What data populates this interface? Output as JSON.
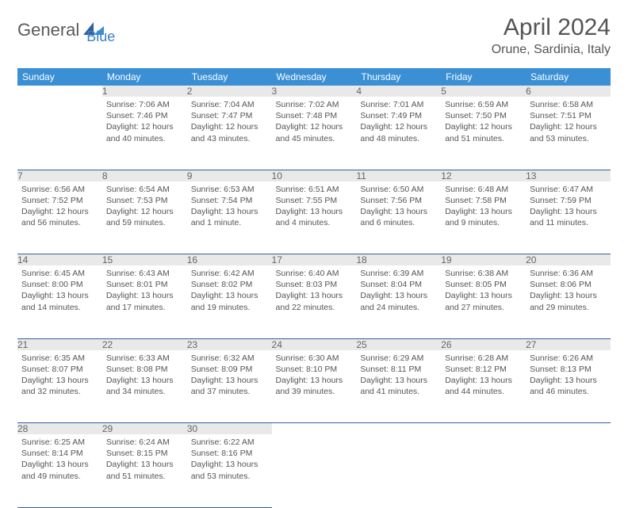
{
  "logo": {
    "text1": "General",
    "text2": "Blue",
    "color_accent": "#3b8fd4",
    "color_text": "#5a5a5a"
  },
  "header": {
    "title": "April 2024",
    "location": "Orune, Sardinia, Italy"
  },
  "colors": {
    "header_bg": "#3b8fd4",
    "header_text": "#ffffff",
    "daynum_bg": "#e9e9e9",
    "daynum_text": "#666666",
    "body_text": "#555555",
    "rule": "#2f5f9f"
  },
  "columns": [
    "Sunday",
    "Monday",
    "Tuesday",
    "Wednesday",
    "Thursday",
    "Friday",
    "Saturday"
  ],
  "weeks": [
    [
      null,
      {
        "n": "1",
        "sr": "7:06 AM",
        "ss": "7:46 PM",
        "dl": "12 hours and 40 minutes."
      },
      {
        "n": "2",
        "sr": "7:04 AM",
        "ss": "7:47 PM",
        "dl": "12 hours and 43 minutes."
      },
      {
        "n": "3",
        "sr": "7:02 AM",
        "ss": "7:48 PM",
        "dl": "12 hours and 45 minutes."
      },
      {
        "n": "4",
        "sr": "7:01 AM",
        "ss": "7:49 PM",
        "dl": "12 hours and 48 minutes."
      },
      {
        "n": "5",
        "sr": "6:59 AM",
        "ss": "7:50 PM",
        "dl": "12 hours and 51 minutes."
      },
      {
        "n": "6",
        "sr": "6:58 AM",
        "ss": "7:51 PM",
        "dl": "12 hours and 53 minutes."
      }
    ],
    [
      {
        "n": "7",
        "sr": "6:56 AM",
        "ss": "7:52 PM",
        "dl": "12 hours and 56 minutes."
      },
      {
        "n": "8",
        "sr": "6:54 AM",
        "ss": "7:53 PM",
        "dl": "12 hours and 59 minutes."
      },
      {
        "n": "9",
        "sr": "6:53 AM",
        "ss": "7:54 PM",
        "dl": "13 hours and 1 minute."
      },
      {
        "n": "10",
        "sr": "6:51 AM",
        "ss": "7:55 PM",
        "dl": "13 hours and 4 minutes."
      },
      {
        "n": "11",
        "sr": "6:50 AM",
        "ss": "7:56 PM",
        "dl": "13 hours and 6 minutes."
      },
      {
        "n": "12",
        "sr": "6:48 AM",
        "ss": "7:58 PM",
        "dl": "13 hours and 9 minutes."
      },
      {
        "n": "13",
        "sr": "6:47 AM",
        "ss": "7:59 PM",
        "dl": "13 hours and 11 minutes."
      }
    ],
    [
      {
        "n": "14",
        "sr": "6:45 AM",
        "ss": "8:00 PM",
        "dl": "13 hours and 14 minutes."
      },
      {
        "n": "15",
        "sr": "6:43 AM",
        "ss": "8:01 PM",
        "dl": "13 hours and 17 minutes."
      },
      {
        "n": "16",
        "sr": "6:42 AM",
        "ss": "8:02 PM",
        "dl": "13 hours and 19 minutes."
      },
      {
        "n": "17",
        "sr": "6:40 AM",
        "ss": "8:03 PM",
        "dl": "13 hours and 22 minutes."
      },
      {
        "n": "18",
        "sr": "6:39 AM",
        "ss": "8:04 PM",
        "dl": "13 hours and 24 minutes."
      },
      {
        "n": "19",
        "sr": "6:38 AM",
        "ss": "8:05 PM",
        "dl": "13 hours and 27 minutes."
      },
      {
        "n": "20",
        "sr": "6:36 AM",
        "ss": "8:06 PM",
        "dl": "13 hours and 29 minutes."
      }
    ],
    [
      {
        "n": "21",
        "sr": "6:35 AM",
        "ss": "8:07 PM",
        "dl": "13 hours and 32 minutes."
      },
      {
        "n": "22",
        "sr": "6:33 AM",
        "ss": "8:08 PM",
        "dl": "13 hours and 34 minutes."
      },
      {
        "n": "23",
        "sr": "6:32 AM",
        "ss": "8:09 PM",
        "dl": "13 hours and 37 minutes."
      },
      {
        "n": "24",
        "sr": "6:30 AM",
        "ss": "8:10 PM",
        "dl": "13 hours and 39 minutes."
      },
      {
        "n": "25",
        "sr": "6:29 AM",
        "ss": "8:11 PM",
        "dl": "13 hours and 41 minutes."
      },
      {
        "n": "26",
        "sr": "6:28 AM",
        "ss": "8:12 PM",
        "dl": "13 hours and 44 minutes."
      },
      {
        "n": "27",
        "sr": "6:26 AM",
        "ss": "8:13 PM",
        "dl": "13 hours and 46 minutes."
      }
    ],
    [
      {
        "n": "28",
        "sr": "6:25 AM",
        "ss": "8:14 PM",
        "dl": "13 hours and 49 minutes."
      },
      {
        "n": "29",
        "sr": "6:24 AM",
        "ss": "8:15 PM",
        "dl": "13 hours and 51 minutes."
      },
      {
        "n": "30",
        "sr": "6:22 AM",
        "ss": "8:16 PM",
        "dl": "13 hours and 53 minutes."
      },
      null,
      null,
      null,
      null
    ]
  ],
  "labels": {
    "sunrise": "Sunrise:",
    "sunset": "Sunset:",
    "daylight": "Daylight:"
  }
}
